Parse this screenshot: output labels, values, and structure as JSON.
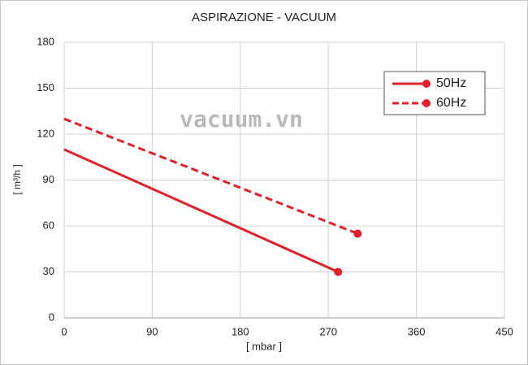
{
  "chart_data": {
    "type": "line",
    "title": "ASPIRAZIONE - VACUUM",
    "x_label": "[ mbar ]",
    "y_label": "[ m³/h ]",
    "watermark": "vacuum.vn",
    "xlim": [
      0,
      450
    ],
    "xticks": [
      0,
      90,
      180,
      270,
      360,
      450
    ],
    "ylim": [
      0,
      180
    ],
    "yticks": [
      0,
      30,
      60,
      90,
      120,
      150,
      180
    ],
    "grid": true,
    "legend": "upper right",
    "series": [
      {
        "name": "50Hz",
        "color": "#e0202a",
        "dashed": false,
        "x": [
          0,
          280
        ],
        "values": [
          110,
          30
        ]
      },
      {
        "name": "60Hz",
        "color": "#e0202a",
        "dashed": true,
        "x": [
          0,
          300
        ],
        "values": [
          130,
          55
        ]
      }
    ]
  }
}
